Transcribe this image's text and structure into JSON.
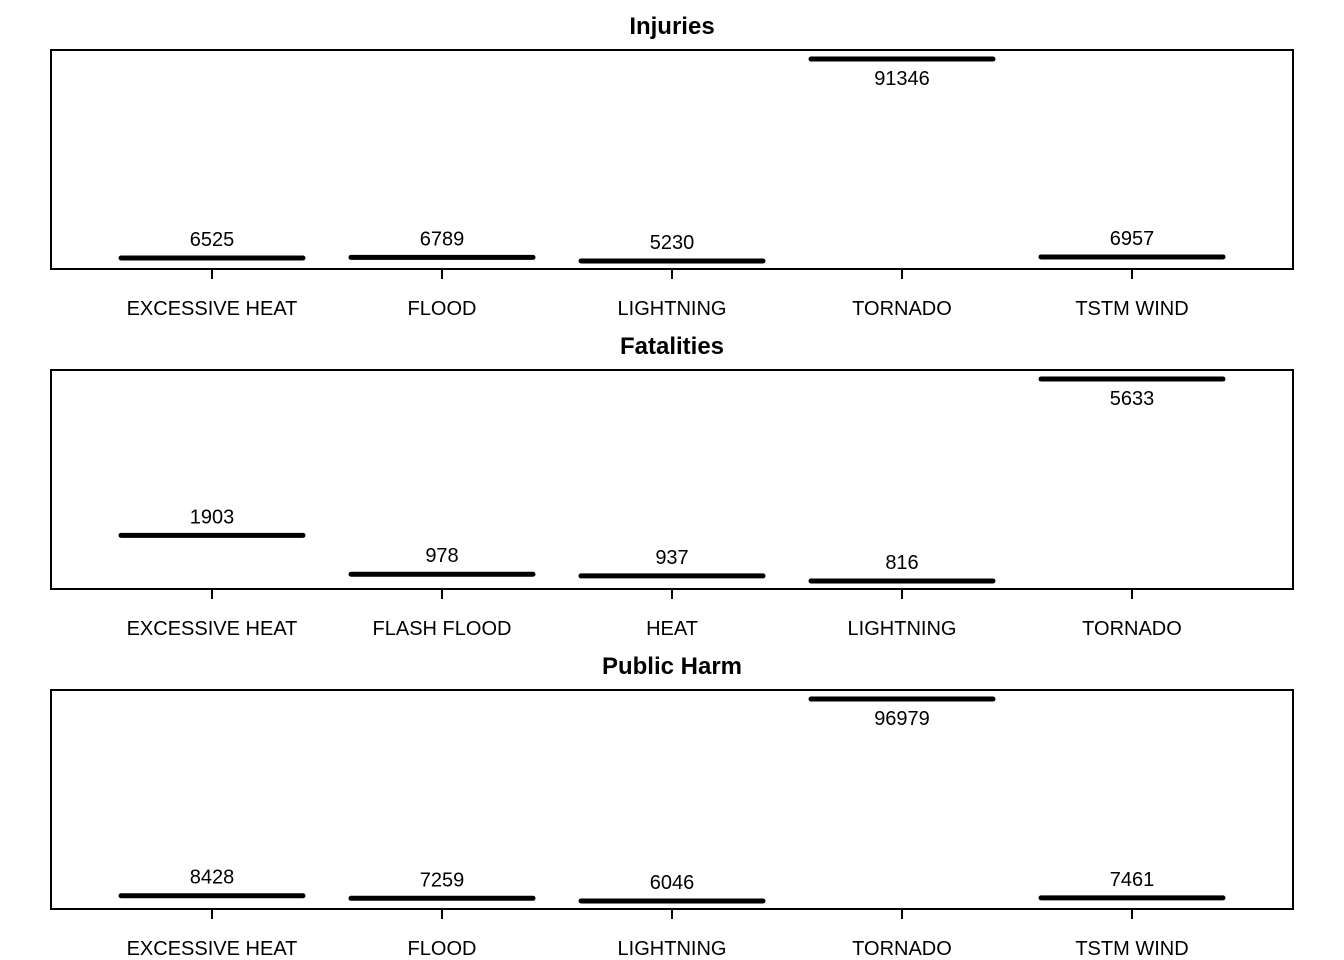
{
  "chart_data": [
    {
      "type": "bar",
      "title": "Injuries",
      "categories": [
        "EXCESSIVE HEAT",
        "FLOOD",
        "LIGHTNING",
        "TORNADO",
        "TSTM WIND"
      ],
      "values": [
        6525,
        6789,
        5230,
        91346,
        6957
      ],
      "value_labels": [
        "6525",
        "6789",
        "5230",
        "91346",
        "6957"
      ],
      "ylim": [
        5230,
        91346
      ],
      "bar_style": "horizontal segment at value",
      "grid": false,
      "legend": "none",
      "color": "#000000"
    },
    {
      "type": "bar",
      "title": "Fatalities",
      "categories": [
        "EXCESSIVE HEAT",
        "FLASH FLOOD",
        "HEAT",
        "LIGHTNING",
        "TORNADO"
      ],
      "values": [
        1903,
        978,
        937,
        816,
        5633
      ],
      "value_labels": [
        "1903",
        "978",
        "937",
        "816",
        "5633"
      ],
      "ylim": [
        816,
        5633
      ],
      "bar_style": "horizontal segment at value",
      "grid": false,
      "legend": "none",
      "color": "#000000"
    },
    {
      "type": "bar",
      "title": "Public Harm",
      "categories": [
        "EXCESSIVE HEAT",
        "FLOOD",
        "LIGHTNING",
        "TORNADO",
        "TSTM WIND"
      ],
      "values": [
        8428,
        7259,
        6046,
        96979,
        7461
      ],
      "value_labels": [
        "8428",
        "7259",
        "6046",
        "96979",
        "7461"
      ],
      "ylim": [
        6046,
        96979
      ],
      "bar_style": "horizontal segment at value",
      "grid": false,
      "legend": "none",
      "color": "#000000"
    }
  ]
}
